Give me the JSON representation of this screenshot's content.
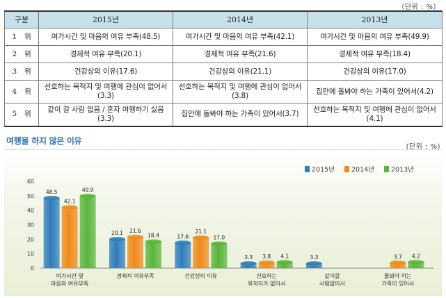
{
  "unit_top": "（단위 : %）",
  "table": {
    "headers": [
      "구분",
      "2015년",
      "2014년",
      "2013년"
    ],
    "rows": [
      {
        "rank": "1 위",
        "y2015": "여가시간 및 마음의 여유 부족(48.5)",
        "y2014": "여가시간 및 마음의 여유 부족(42.1)",
        "y2013": "여가시간 및 마음의 여유 부족(49.9)"
      },
      {
        "rank": "2 위",
        "y2015": "경제적 여유 부족(20.1)",
        "y2014": "경제적 여유 부족(21.6)",
        "y2013": "경제적 여유 부족(18.4)"
      },
      {
        "rank": "3 위",
        "y2015": "건강상의 이유(17.6)",
        "y2014": "건강상의 이유(21.1)",
        "y2013": "건강상의 이유(17.0)"
      },
      {
        "rank": "4 위",
        "y2015": "선호하는 목적지 및 여행에 관심이 없어서(3.3)",
        "y2014": "선호하는 목적지 및 여행에 관심이 없어서(3.8)",
        "y2013": "집안에 돌봐야 하는 가족이 있어서(4.2)"
      },
      {
        "rank": "5 위",
        "y2015": "같이 갈 사람 없음 / 혼자 여행하기 싫음(3.3)",
        "y2014": "집안에 돌봐야 하는 가족이 있어서(3.7)",
        "y2013": "선호하는 목적지 및 여행에 관심이 없어서(4.1)"
      }
    ]
  },
  "chart_title": "여행을 하지 않은 이유",
  "unit_chart": "(단위 : %)",
  "chart_data": {
    "type": "bar",
    "title": "여행을 하지 않은 이유",
    "ylim": [
      0,
      60
    ],
    "yticks": [
      0,
      10,
      20,
      30,
      40,
      50,
      60
    ],
    "grid": false,
    "legend_position": "top-right",
    "categories": [
      [
        "여가시간 및",
        "마음의 여유부족"
      ],
      [
        "경제적 여유부족"
      ],
      [
        "건강상의 이유"
      ],
      [
        "선호하는",
        "목적지가 없어서"
      ],
      [
        "같이갈",
        "사람없어서"
      ],
      [
        "돌봐야 하는",
        "가족이 있어서"
      ]
    ],
    "series": [
      {
        "name": "2015년",
        "color": "#2f7dba",
        "values": [
          48.5,
          20.1,
          17.6,
          3.3,
          3.3,
          null
        ]
      },
      {
        "name": "2014년",
        "color": "#f08a1c",
        "values": [
          42.1,
          21.6,
          21.1,
          3.8,
          null,
          3.7
        ]
      },
      {
        "name": "2013년",
        "color": "#59b53a",
        "values": [
          49.9,
          18.4,
          17.0,
          4.1,
          null,
          4.2
        ]
      }
    ]
  }
}
